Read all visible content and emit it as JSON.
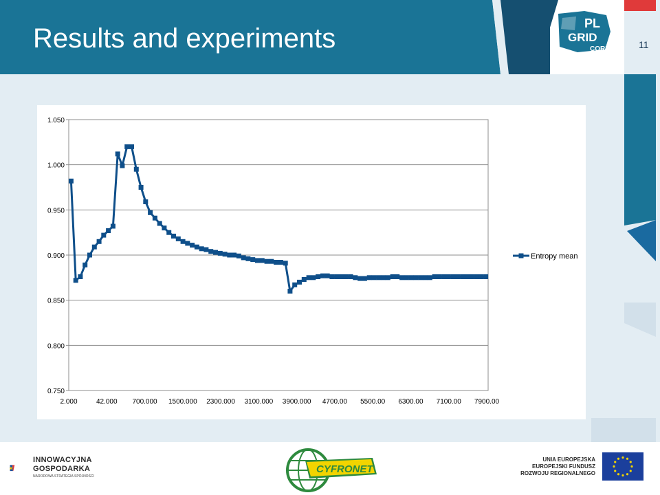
{
  "slide": {
    "title": "Results and experiments",
    "number": "11"
  },
  "logos": {
    "plgrid_pl": "PL",
    "plgrid_grid": "GRID",
    "plgrid_core": "CORE",
    "ig_line1": "INNOWACYJNA",
    "ig_line2": "GOSPODARKA",
    "ig_line3": "NARODOWA STRATEGIA SPÓJNOŚCI",
    "cyfronet": "CYFRONET",
    "ue_line1": "UNIA EUROPEJSKA",
    "ue_line2": "EUROPEJSKI FUNDUSZ",
    "ue_line3": "ROZWOJU REGIONALNEGO"
  },
  "colors": {
    "header": "#1a7496",
    "header_dark": "#154f70",
    "series": "#0f4f8a",
    "background": "#e3edf3",
    "accent_red": "#e03a3a"
  },
  "chart_data": {
    "type": "line",
    "xlabel": "",
    "ylabel": "",
    "ylim": [
      0.75,
      1.05
    ],
    "yticks": [
      "1.050",
      "1.000",
      "0.950",
      "0.900",
      "0.850",
      "0.800",
      "0.750"
    ],
    "xticks": [
      "2.000",
      "42.000",
      "700.000",
      "1500.000",
      "2300.000",
      "3100.000",
      "3900.000",
      "4700.00",
      "5500.00",
      "6300.00",
      "7100.00",
      "7900.00"
    ],
    "grid": true,
    "legend": "right",
    "series": [
      {
        "name": "Entropy mean",
        "values": [
          0.982,
          0.872,
          0.876,
          0.889,
          0.9,
          0.909,
          0.915,
          0.922,
          0.927,
          0.932,
          1.012,
          0.999,
          1.02,
          1.02,
          0.995,
          0.975,
          0.959,
          0.947,
          0.941,
          0.935,
          0.93,
          0.925,
          0.921,
          0.918,
          0.915,
          0.913,
          0.911,
          0.909,
          0.907,
          0.906,
          0.904,
          0.903,
          0.902,
          0.901,
          0.9,
          0.9,
          0.899,
          0.897,
          0.896,
          0.895,
          0.894,
          0.894,
          0.893,
          0.893,
          0.892,
          0.892,
          0.891,
          0.86,
          0.867,
          0.87,
          0.873,
          0.875,
          0.875,
          0.876,
          0.877,
          0.877,
          0.876,
          0.876,
          0.876,
          0.876,
          0.876,
          0.875,
          0.874,
          0.874,
          0.875,
          0.875,
          0.875,
          0.875,
          0.875,
          0.876,
          0.876,
          0.875,
          0.875,
          0.875,
          0.875,
          0.875,
          0.875,
          0.875,
          0.876,
          0.876,
          0.876,
          0.876,
          0.876,
          0.876,
          0.876,
          0.876,
          0.876,
          0.876,
          0.876,
          0.876
        ]
      }
    ]
  }
}
